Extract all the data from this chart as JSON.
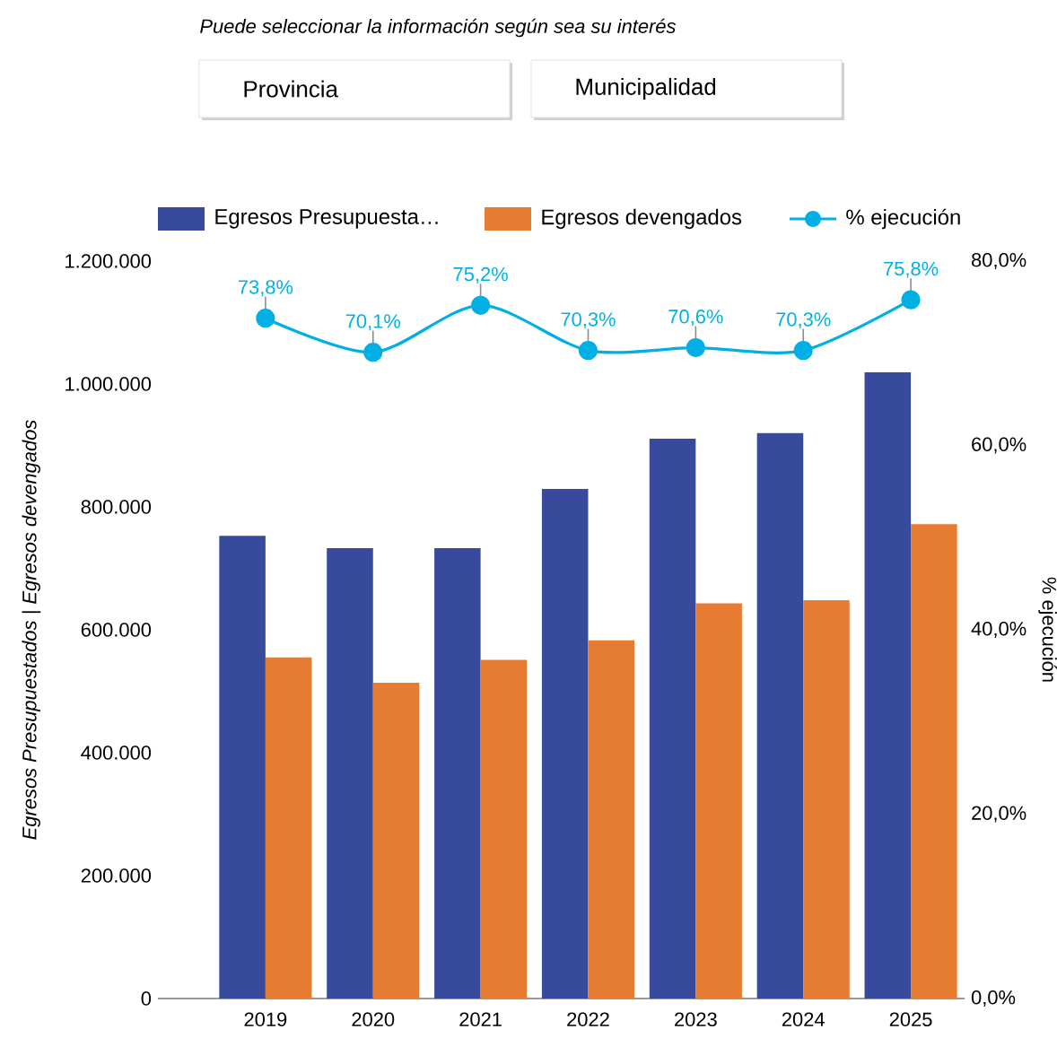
{
  "chart_data": {
    "type": "bar",
    "subtitle": "Puede seleccionar la información  según sea su interés",
    "annotations": [
      "Provincia",
      "Municipalidad"
    ],
    "categories": [
      "2019",
      "2020",
      "2021",
      "2022",
      "2023",
      "2024",
      "2025"
    ],
    "series": [
      {
        "name": "Egresos Presupuesta…",
        "color": "#374a9b",
        "values": [
          753000,
          733000,
          733000,
          829000,
          911000,
          920000,
          1019000
        ]
      },
      {
        "name": "Egresos devengados",
        "color": "#e57c32",
        "values": [
          555000,
          514000,
          551000,
          583000,
          643000,
          648000,
          772000
        ]
      },
      {
        "name": "% ejecución",
        "type": "line",
        "axis": "y2",
        "color": "#00b0e4",
        "marker": "circle",
        "values": [
          73.8,
          70.1,
          75.2,
          70.3,
          70.6,
          70.3,
          75.8
        ],
        "value_labels": [
          "73,8%",
          "70,1%",
          "75,2%",
          "70,3%",
          "70,6%",
          "70,3%",
          "75,8%"
        ]
      }
    ],
    "ylabel": "Egresos Presupuestados | Egresos devengados",
    "y2label": "% ejecución",
    "ylim": [
      0,
      1200000
    ],
    "yticks": [
      0,
      {
        "value": 200000,
        "label": "200.000"
      },
      {
        "value": 400000,
        "label": "400.000"
      },
      {
        "value": 600000,
        "label": "600.000"
      },
      {
        "value": 800000,
        "label": "800.000"
      },
      {
        "value": 1000000,
        "label": "1.000.000"
      },
      {
        "value": 1200000,
        "label": "1.200.000"
      }
    ],
    "y2lim": [
      0,
      80
    ],
    "y2ticks": [
      {
        "value": 0,
        "label": "0,0%"
      },
      {
        "value": 20,
        "label": "20,0%"
      },
      {
        "value": 40,
        "label": "40,0%"
      },
      {
        "value": 60,
        "label": "60,0%"
      },
      {
        "value": 80,
        "label": "80,0%"
      }
    ],
    "legend": "top"
  }
}
